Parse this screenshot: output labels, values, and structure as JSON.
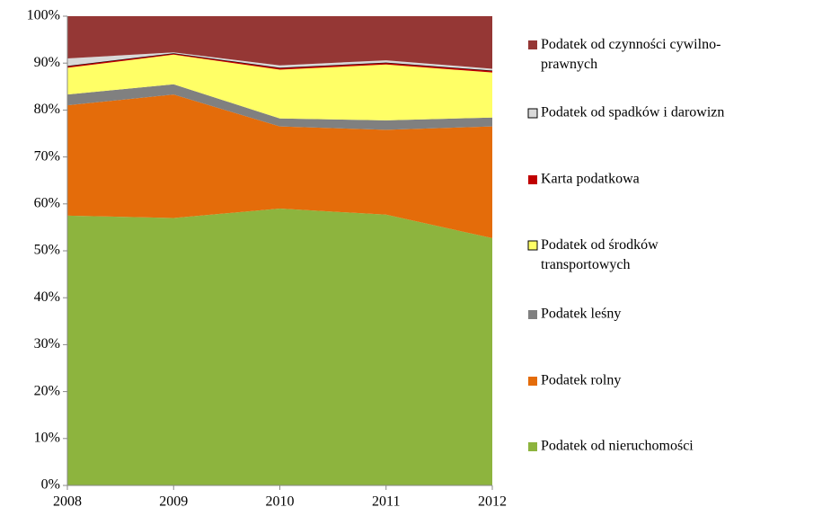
{
  "chart_data": {
    "type": "stacked_area",
    "x": [
      2008,
      2009,
      2010,
      2011,
      2012
    ],
    "xlim": [
      2008,
      2012
    ],
    "xticks": [
      2008,
      2009,
      2010,
      2011,
      2012
    ],
    "ylim": [
      0,
      100
    ],
    "yticks": [
      {
        "value": 0,
        "label": "0%"
      },
      {
        "value": 10,
        "label": "10%"
      },
      {
        "value": 20,
        "label": "20%"
      },
      {
        "value": 30,
        "label": "30%"
      },
      {
        "value": 40,
        "label": "40%"
      },
      {
        "value": 50,
        "label": "50%"
      },
      {
        "value": 60,
        "label": "60%"
      },
      {
        "value": 70,
        "label": "70%"
      },
      {
        "value": 80,
        "label": "80%"
      },
      {
        "value": 90,
        "label": "90%"
      },
      {
        "value": 100,
        "label": "100%"
      }
    ],
    "legend": "right",
    "series": [
      {
        "name": "Podatek od nieruchomości",
        "color": "#8db43e",
        "values": [
          57.5,
          57,
          59,
          57.7,
          52.7
        ]
      },
      {
        "name": "Podatek rolny",
        "color": "#e46c0a",
        "values": [
          23.5,
          26.3,
          17.5,
          18.1,
          23.8
        ]
      },
      {
        "name": "Podatek leśny",
        "color": "#808080",
        "values": [
          2.3,
          2.2,
          1.7,
          2.0,
          1.9
        ]
      },
      {
        "name": "Podatek od środków transportowych",
        "color": "#ffff66",
        "values": [
          5.7,
          6.3,
          10.4,
          11.9,
          9.6
        ]
      },
      {
        "name": "Karta podatkowa",
        "color": "#c00000",
        "values": [
          0.4,
          0.3,
          0.4,
          0.4,
          0.4
        ]
      },
      {
        "name": "Podatek od spadków i darowizn",
        "color": "#d9d9d9",
        "values": [
          1.6,
          0.2,
          0.5,
          0.5,
          0.4
        ]
      },
      {
        "name": "Podatek od czynności cywilno-prawnych",
        "color": "#953735",
        "values": [
          9,
          7.7,
          10.5,
          9.4,
          11.2
        ]
      }
    ]
  }
}
